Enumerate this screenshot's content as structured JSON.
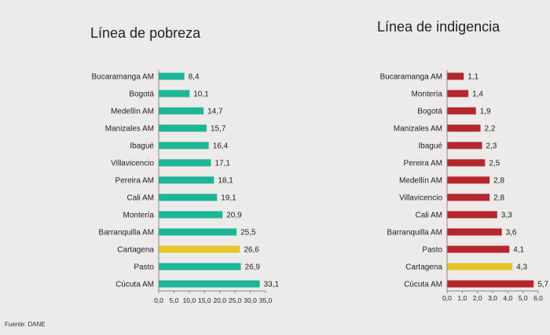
{
  "source": "Fuente: DANE",
  "chart_data": [
    {
      "type": "bar",
      "orientation": "horizontal",
      "title": "Línea de pobreza",
      "categories": [
        "Bucaramanga AM",
        "Bogotá",
        "Medellín AM",
        "Manizales AM",
        "Ibagué",
        "Villavicencio",
        "Pereira AM",
        "Cali AM",
        "Montería",
        "Barranquilla AM",
        "Cartagena",
        "Pasto",
        "Cúcuta AM"
      ],
      "values": [
        8.4,
        10.1,
        14.7,
        15.7,
        16.4,
        17.1,
        18.1,
        19.1,
        20.9,
        25.5,
        26.6,
        26.9,
        33.1
      ],
      "value_labels": [
        "8,4",
        "10,1",
        "14,7",
        "15,7",
        "16,4",
        "17,1",
        "18,1",
        "19,1",
        "20,9",
        "25,5",
        "26,6",
        "26,9",
        "33,1"
      ],
      "xlim": [
        0,
        35
      ],
      "xticks": [
        0,
        5,
        10,
        15,
        20,
        25,
        30,
        35
      ],
      "xtick_labels": [
        "0,0",
        "5,0",
        "10,0",
        "15,0",
        "20,0",
        "25,0",
        "30,0",
        "35,0"
      ],
      "bar_color": "#1db595",
      "highlight_color": "#e3c62a",
      "highlight_category": "Cartagena",
      "grid": false,
      "legend": "none"
    },
    {
      "type": "bar",
      "orientation": "horizontal",
      "title": "Línea de indigencia",
      "categories": [
        "Bucaramanga AM",
        "Montería",
        "Bogotá",
        "Manizales AM",
        "Ibagué",
        "Pereira AM",
        "Medellín AM",
        "Villavicencio",
        "Cali AM",
        "Barranquilla AM",
        "Pasto",
        "Cartagena",
        "Cúcuta AM"
      ],
      "values": [
        1.1,
        1.4,
        1.9,
        2.2,
        2.3,
        2.5,
        2.8,
        2.8,
        3.3,
        3.6,
        4.1,
        4.3,
        5.7
      ],
      "value_labels": [
        "1,1",
        "1,4",
        "1,9",
        "2,2",
        "2,3",
        "2,5",
        "2,8",
        "2,8",
        "3,3",
        "3,6",
        "4,1",
        "4,3",
        "5,7"
      ],
      "xlim": [
        0,
        6
      ],
      "xticks": [
        0,
        1,
        2,
        3,
        4,
        5,
        6
      ],
      "xtick_labels": [
        "0,0",
        "1,0",
        "2,0",
        "3,0",
        "4,0",
        "5,0",
        "6,0"
      ],
      "bar_color": "#b3272d",
      "highlight_color": "#e3c62a",
      "highlight_category": "Cartagena",
      "grid": false,
      "legend": "none"
    }
  ]
}
